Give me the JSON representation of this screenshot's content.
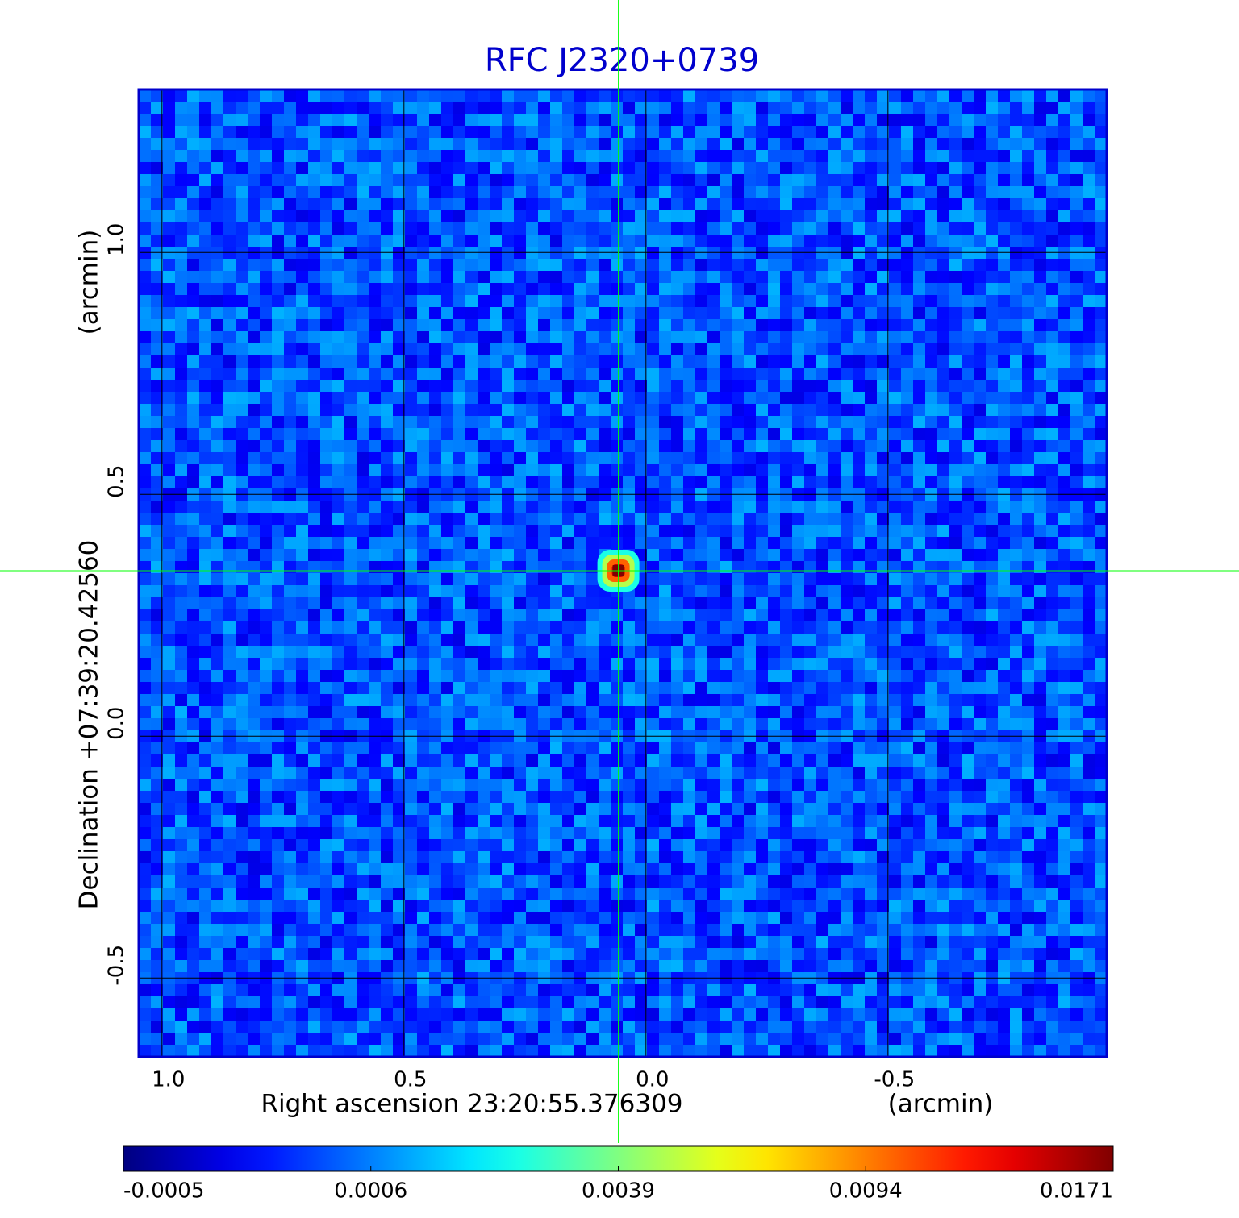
{
  "chart_data": {
    "type": "image",
    "title": "RFC J2320+0739",
    "title_color": "#0000cc",
    "x_label": "Right ascension  23:20:55.376309",
    "x_unit": "(arcmin)",
    "y_label": "Declination  +07:39:20.42560",
    "y_unit": "(arcmin)",
    "xlim": [
      1.048,
      -0.952
    ],
    "ylim": [
      -0.663,
      1.337
    ],
    "xticks": [
      {
        "value": 1,
        "label": "1.0"
      },
      0.5,
      {
        "value": 0,
        "label": "0.0"
      },
      -0.5
    ],
    "yticks": [
      -0.5,
      {
        "value": 0,
        "label": "0.0"
      },
      0.5,
      {
        "value": 1,
        "label": "1.0"
      }
    ],
    "grid": true,
    "colormap": "jet",
    "colorbar_ticks": [
      -0.0005,
      0.0006,
      0.0039,
      0.0094,
      0.0171
    ],
    "source": {
      "x": 0.057,
      "y": 0.342
    },
    "crosshair_color": "#00ff00"
  }
}
